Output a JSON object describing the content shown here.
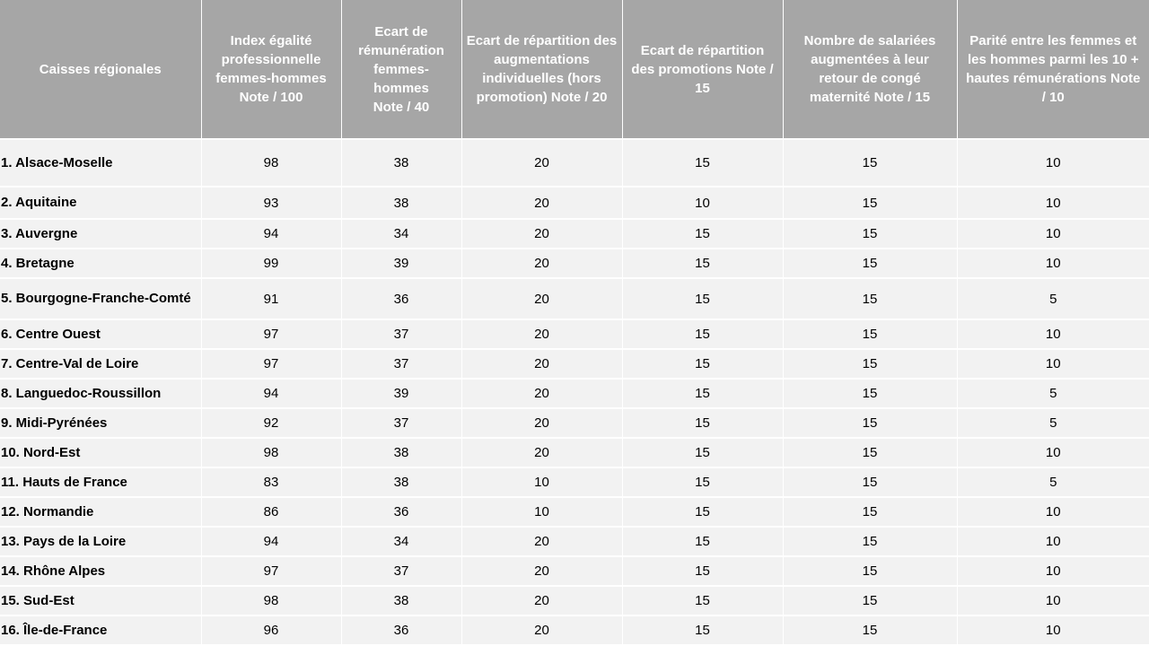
{
  "headers": [
    "Caisses  régionales",
    "Index égalité professionnelle femmes-hommes Note / 100",
    "Ecart de rémunération femmes-hommes Note / 40",
    "Ecart de répartition des augmentations individuelles (hors promotion) Note / 20",
    "Ecart de répartition des promotions Note / 15",
    "Nombre de salariées augmentées  à leur retour de congé maternité Note / 15",
    "Parité entre les femmes et les hommes parmi les 10 + hautes rémunérations Note / 10"
  ],
  "rows": [
    {
      "name": "1. Alsace-Moselle",
      "index": "98",
      "remuneration": "38",
      "augmentations": "20",
      "promotions": "15",
      "maternite": "15",
      "parite": "10"
    },
    {
      "name": "2. Aquitaine",
      "index": "93",
      "remuneration": "38",
      "augmentations": "20",
      "promotions": "10",
      "maternite": "15",
      "parite": "10"
    },
    {
      "name": "3. Auvergne",
      "index": "94",
      "remuneration": "34",
      "augmentations": "20",
      "promotions": "15",
      "maternite": "15",
      "parite": "10"
    },
    {
      "name": "4. Bretagne",
      "index": "99",
      "remuneration": "39",
      "augmentations": "20",
      "promotions": "15",
      "maternite": "15",
      "parite": "10"
    },
    {
      "name": "5. Bourgogne-Franche-Comté",
      "index": "91",
      "remuneration": "36",
      "augmentations": "20",
      "promotions": "15",
      "maternite": "15",
      "parite": "5"
    },
    {
      "name": "6. Centre  Ouest",
      "index": "97",
      "remuneration": "37",
      "augmentations": "20",
      "promotions": "15",
      "maternite": "15",
      "parite": "10"
    },
    {
      "name": "7. Centre-Val  de Loire",
      "index": "97",
      "remuneration": "37",
      "augmentations": "20",
      "promotions": "15",
      "maternite": "15",
      "parite": "10"
    },
    {
      "name": "8. Languedoc-Roussillon",
      "index": "94",
      "remuneration": "39",
      "augmentations": "20",
      "promotions": "15",
      "maternite": "15",
      "parite": "5"
    },
    {
      "name": "9. Midi-Pyrénées",
      "index": "92",
      "remuneration": "37",
      "augmentations": "20",
      "promotions": "15",
      "maternite": "15",
      "parite": "5"
    },
    {
      "name": "10.  Nord-Est",
      "index": "98",
      "remuneration": "38",
      "augmentations": "20",
      "promotions": "15",
      "maternite": "15",
      "parite": "10"
    },
    {
      "name": "11.  Hauts  de France",
      "index": "83",
      "remuneration": "38",
      "augmentations": "10",
      "promotions": "15",
      "maternite": "15",
      "parite": "5"
    },
    {
      "name": "12.  Normandie",
      "index": "86",
      "remuneration": "36",
      "augmentations": "10",
      "promotions": "15",
      "maternite": "15",
      "parite": "10"
    },
    {
      "name": "13.  Pays de la Loire",
      "index": "94",
      "remuneration": "34",
      "augmentations": "20",
      "promotions": "15",
      "maternite": "15",
      "parite": "10"
    },
    {
      "name": "14.  Rhône  Alpes",
      "index": "97",
      "remuneration": "37",
      "augmentations": "20",
      "promotions": "15",
      "maternite": "15",
      "parite": "10"
    },
    {
      "name": "15.  Sud-Est",
      "index": "98",
      "remuneration": "38",
      "augmentations": "20",
      "promotions": "15",
      "maternite": "15",
      "parite": "10"
    },
    {
      "name": "16.  Île-de-France",
      "index": "96",
      "remuneration": "36",
      "augmentations": "20",
      "promotions": "15",
      "maternite": "15",
      "parite": "10"
    }
  ]
}
